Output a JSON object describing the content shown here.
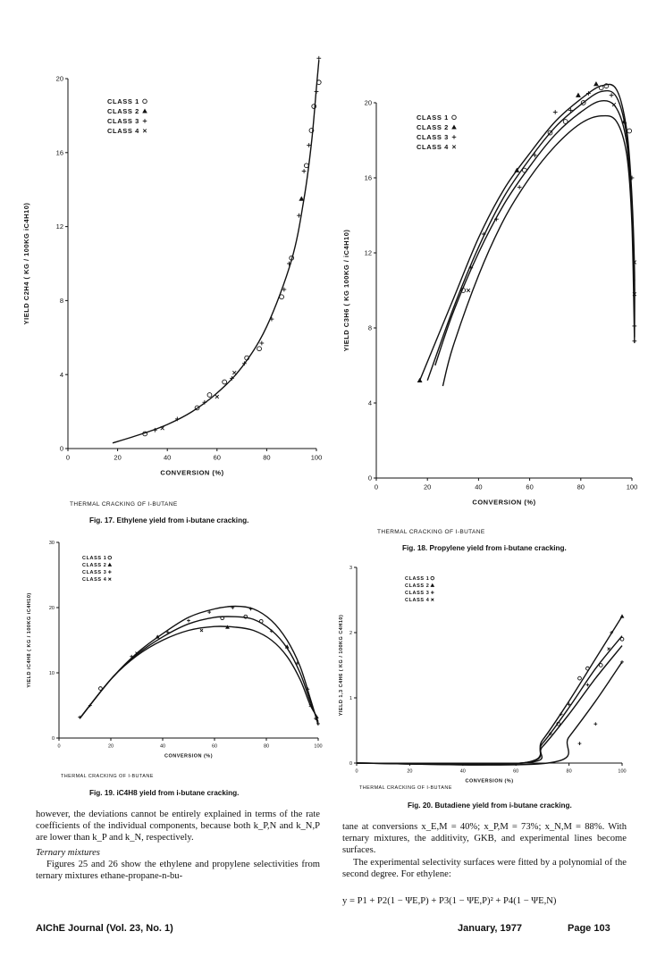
{
  "figures": [
    {
      "id": "fig17",
      "caption": "Fig. 17. Ethylene yield from i-butane cracking.",
      "note": "THERMAL CRACKING OF I-BUTANE",
      "chart_data": {
        "type": "scatter",
        "xlabel": "CONVERSION (%)",
        "ylabel": "YIELD C2H4 ( KG / 100KG iC4H10)",
        "xlim": [
          0,
          100
        ],
        "ylim": [
          0,
          20
        ],
        "xticks": [
          0,
          20,
          40,
          60,
          80,
          100
        ],
        "yticks": [
          0,
          4,
          8,
          12,
          16,
          20
        ],
        "legend": [
          "CLASS 1",
          "CLASS 2",
          "CLASS 3",
          "CLASS 4"
        ],
        "legend_markers": [
          "o",
          "△",
          "+",
          "×"
        ],
        "legend_position": "top-left",
        "curves": [
          {
            "x": [
              18,
              30,
              40,
              50,
              60,
              70,
              80,
              90,
              95,
              98,
              100,
              101
            ],
            "y": [
              0.3,
              0.8,
              1.3,
              2.0,
              3.0,
              4.4,
              6.6,
              10.2,
              13.5,
              16.5,
              19.5,
              21.0
            ]
          }
        ],
        "points": [
          {
            "class": 1,
            "x": 31,
            "y": 0.8
          },
          {
            "class": 3,
            "x": 35,
            "y": 1.0
          },
          {
            "class": 4,
            "x": 38,
            "y": 1.1
          },
          {
            "class": 3,
            "x": 44,
            "y": 1.6
          },
          {
            "class": 1,
            "x": 52,
            "y": 2.2
          },
          {
            "class": 3,
            "x": 55,
            "y": 2.5
          },
          {
            "class": 1,
            "x": 57,
            "y": 2.9
          },
          {
            "class": 4,
            "x": 60,
            "y": 2.8
          },
          {
            "class": 1,
            "x": 63,
            "y": 3.6
          },
          {
            "class": 3,
            "x": 66,
            "y": 3.8
          },
          {
            "class": 4,
            "x": 67,
            "y": 4.1
          },
          {
            "class": 3,
            "x": 71,
            "y": 4.6
          },
          {
            "class": 1,
            "x": 72,
            "y": 4.9
          },
          {
            "class": 1,
            "x": 77,
            "y": 5.4
          },
          {
            "class": 3,
            "x": 78,
            "y": 5.7
          },
          {
            "class": 3,
            "x": 82,
            "y": 7.0
          },
          {
            "class": 1,
            "x": 86,
            "y": 8.2
          },
          {
            "class": 3,
            "x": 87,
            "y": 8.6
          },
          {
            "class": 3,
            "x": 89,
            "y": 10.0
          },
          {
            "class": 1,
            "x": 90,
            "y": 10.3
          },
          {
            "class": 3,
            "x": 93,
            "y": 12.6
          },
          {
            "class": 2,
            "x": 94,
            "y": 13.5
          },
          {
            "class": 3,
            "x": 95,
            "y": 15.0
          },
          {
            "class": 1,
            "x": 96,
            "y": 15.3
          },
          {
            "class": 3,
            "x": 97,
            "y": 16.4
          },
          {
            "class": 1,
            "x": 98,
            "y": 17.2
          },
          {
            "class": 1,
            "x": 99,
            "y": 18.5
          },
          {
            "class": 3,
            "x": 100,
            "y": 19.3
          },
          {
            "class": 1,
            "x": 101,
            "y": 19.8
          },
          {
            "class": 3,
            "x": 101,
            "y": 21.1
          }
        ]
      }
    },
    {
      "id": "fig18",
      "caption": "Fig. 18. Propylene yield from i-butane cracking.",
      "note": "THERMAL CRACKING OF I-BUTANE",
      "chart_data": {
        "type": "scatter",
        "xlabel": "CONVERSION (%)",
        "ylabel": "YIELD C3H6 ( KG 100KG / iC4H10)",
        "xlim": [
          0,
          100
        ],
        "ylim": [
          0,
          20
        ],
        "xticks": [
          0,
          20,
          40,
          60,
          80,
          100
        ],
        "yticks": [
          0,
          4,
          8,
          12,
          16,
          20
        ],
        "legend": [
          "CLASS 1",
          "CLASS 2",
          "CLASS 3",
          "CLASS 4"
        ],
        "legend_markers": [
          "o",
          "△",
          "+",
          "×"
        ],
        "legend_position": "top-left",
        "curves": [
          {
            "x": [
              17,
              30,
              40,
              50,
              60,
              70,
              80,
              88,
              94,
              98,
              100,
              101,
              101
            ],
            "y": [
              5.2,
              9.5,
              12.8,
              15.4,
              17.3,
              19.0,
              20.2,
              20.9,
              20.7,
              18.5,
              15.0,
              11.0,
              7.5
            ]
          },
          {
            "x": [
              20,
              30,
              40,
              50,
              60,
              70,
              80,
              88,
              94,
              98,
              100,
              101
            ],
            "y": [
              5.2,
              9.0,
              12.3,
              15.0,
              17.0,
              18.7,
              19.9,
              20.6,
              20.3,
              18.2,
              14.5,
              10.5
            ]
          },
          {
            "x": [
              23,
              30,
              40,
              50,
              60,
              70,
              80,
              88,
              94,
              98,
              100,
              101
            ],
            "y": [
              6.0,
              8.8,
              12.0,
              14.6,
              16.6,
              18.3,
              19.5,
              20.1,
              19.7,
              17.8,
              14.0,
              10.0
            ]
          },
          {
            "x": [
              26,
              30,
              40,
              50,
              60,
              70,
              80,
              88,
              94,
              98,
              100,
              101
            ],
            "y": [
              4.9,
              7.0,
              10.8,
              13.8,
              16.0,
              17.7,
              18.9,
              19.3,
              19.0,
              17.2,
              13.5,
              7.2
            ]
          }
        ],
        "points": [
          {
            "class": 2,
            "x": 17,
            "y": 5.2
          },
          {
            "class": 1,
            "x": 34,
            "y": 10.0
          },
          {
            "class": 4,
            "x": 36,
            "y": 10.0
          },
          {
            "class": 3,
            "x": 37,
            "y": 11.2
          },
          {
            "class": 3,
            "x": 42,
            "y": 13.0
          },
          {
            "class": 3,
            "x": 47,
            "y": 13.8
          },
          {
            "class": 2,
            "x": 55,
            "y": 16.4
          },
          {
            "class": 3,
            "x": 56,
            "y": 15.5
          },
          {
            "class": 1,
            "x": 58,
            "y": 16.4
          },
          {
            "class": 3,
            "x": 62,
            "y": 17.2
          },
          {
            "class": 1,
            "x": 68,
            "y": 18.4
          },
          {
            "class": 3,
            "x": 70,
            "y": 19.5
          },
          {
            "class": 1,
            "x": 74,
            "y": 19.0
          },
          {
            "class": 3,
            "x": 76,
            "y": 19.6
          },
          {
            "class": 2,
            "x": 79,
            "y": 20.4
          },
          {
            "class": 1,
            "x": 81,
            "y": 20.0
          },
          {
            "class": 3,
            "x": 83,
            "y": 20.5
          },
          {
            "class": 2,
            "x": 86,
            "y": 21.0
          },
          {
            "class": 1,
            "x": 88,
            "y": 20.8
          },
          {
            "class": 1,
            "x": 90,
            "y": 20.9
          },
          {
            "class": 3,
            "x": 92,
            "y": 20.4
          },
          {
            "class": 4,
            "x": 93,
            "y": 19.9
          },
          {
            "class": 2,
            "x": 97,
            "y": 19.0
          },
          {
            "class": 1,
            "x": 99,
            "y": 18.5
          },
          {
            "class": 3,
            "x": 100,
            "y": 16.0
          },
          {
            "class": 4,
            "x": 101,
            "y": 11.5
          },
          {
            "class": 4,
            "x": 101,
            "y": 9.8
          },
          {
            "class": 3,
            "x": 101,
            "y": 8.1
          },
          {
            "class": 3,
            "x": 101,
            "y": 7.3
          }
        ]
      }
    },
    {
      "id": "fig19",
      "caption": "Fig. 19. iC4H8 yield from i-butane cracking.",
      "note": "THERMAL CRACKING OF I-BUTANE",
      "chart_data": {
        "type": "scatter",
        "xlabel": "CONVERSION (%)",
        "ylabel": "YIELD iC4H8 ( KG / 100KG iC4H10)",
        "xlim": [
          0,
          100
        ],
        "ylim": [
          0,
          30
        ],
        "xticks": [
          0,
          20,
          40,
          60,
          80,
          100
        ],
        "yticks": [
          0,
          10,
          20,
          30
        ],
        "legend": [
          "CLASS 1",
          "CLASS 2",
          "CLASS 3",
          "CLASS 4"
        ],
        "legend_markers": [
          "o",
          "△",
          "+",
          "×"
        ],
        "legend_position": "top-left",
        "curves": [
          {
            "x": [
              8,
              20,
              30,
              40,
              50,
              60,
              68,
              75,
              82,
              88,
              93,
              97,
              100
            ],
            "y": [
              3.0,
              9.0,
              13.0,
              16.0,
              18.5,
              19.8,
              20.2,
              19.8,
              18.0,
              15.0,
              11.0,
              6.0,
              2.0
            ]
          },
          {
            "x": [
              8,
              20,
              30,
              40,
              50,
              60,
              68,
              75,
              82,
              88,
              93,
              97,
              100
            ],
            "y": [
              3.0,
              9.0,
              12.8,
              15.5,
              17.5,
              18.5,
              18.6,
              18.2,
              16.5,
              13.8,
              10.0,
              5.5,
              2.5
            ]
          },
          {
            "x": [
              8,
              20,
              30,
              40,
              50,
              60,
              68,
              75,
              82,
              88,
              93,
              97,
              100
            ],
            "y": [
              3.0,
              9.0,
              12.6,
              15.0,
              16.5,
              17.1,
              17.0,
              16.5,
              15.0,
              12.5,
              9.0,
              5.0,
              3.0
            ]
          }
        ],
        "points": [
          {
            "class": 3,
            "x": 8,
            "y": 3.2
          },
          {
            "class": 3,
            "x": 12,
            "y": 5.0
          },
          {
            "class": 1,
            "x": 16,
            "y": 7.6
          },
          {
            "class": 3,
            "x": 28,
            "y": 12.5
          },
          {
            "class": 4,
            "x": 30,
            "y": 13.0
          },
          {
            "class": 2,
            "x": 38,
            "y": 15.5
          },
          {
            "class": 3,
            "x": 42,
            "y": 16.2
          },
          {
            "class": 3,
            "x": 50,
            "y": 18.0
          },
          {
            "class": 4,
            "x": 55,
            "y": 16.5
          },
          {
            "class": 3,
            "x": 58,
            "y": 19.3
          },
          {
            "class": 1,
            "x": 63,
            "y": 18.4
          },
          {
            "class": 2,
            "x": 65,
            "y": 17.0
          },
          {
            "class": 3,
            "x": 67,
            "y": 20.0
          },
          {
            "class": 1,
            "x": 72,
            "y": 18.6
          },
          {
            "class": 3,
            "x": 74,
            "y": 19.8
          },
          {
            "class": 1,
            "x": 78,
            "y": 17.9
          },
          {
            "class": 3,
            "x": 82,
            "y": 16.4
          },
          {
            "class": 2,
            "x": 88,
            "y": 14.0
          },
          {
            "class": 3,
            "x": 92,
            "y": 11.5
          },
          {
            "class": 3,
            "x": 96,
            "y": 7.5
          },
          {
            "class": 4,
            "x": 97,
            "y": 5.0
          },
          {
            "class": 3,
            "x": 99,
            "y": 3.0
          },
          {
            "class": 3,
            "x": 100,
            "y": 2.2
          }
        ]
      }
    },
    {
      "id": "fig20",
      "caption": "Fig. 20. Butadiene yield from i-butane cracking.",
      "note": "THERMAL CRACKING OF I-BUTANE",
      "chart_data": {
        "type": "scatter",
        "xlabel": "CONVERSION (%)",
        "ylabel": "YIELD 1,3 C4H6 ( KG / 100KG C4H10)",
        "xlim": [
          0,
          100
        ],
        "ylim": [
          0,
          3
        ],
        "xticks": [
          0,
          20,
          40,
          60,
          80,
          100
        ],
        "yticks": [
          0,
          1,
          2,
          3
        ],
        "legend": [
          "CLASS 1",
          "CLASS 2",
          "CLASS 3",
          "CLASS 4"
        ],
        "legend_markers": [
          "o",
          "△",
          "+",
          "×"
        ],
        "legend_position": "top-left",
        "curves": [
          {
            "x": [
              0,
              62,
              70,
              80,
              90,
              100
            ],
            "y": [
              0,
              0,
              0.35,
              0.95,
              1.6,
              2.25
            ]
          },
          {
            "x": [
              0,
              62,
              70,
              80,
              90,
              100
            ],
            "y": [
              0,
              0,
              0.3,
              0.85,
              1.45,
              1.95
            ]
          },
          {
            "x": [
              0,
              63,
              70,
              80,
              90,
              100
            ],
            "y": [
              0,
              0,
              0.25,
              0.75,
              1.3,
              1.8
            ]
          },
          {
            "x": [
              0,
              72,
              80,
              90,
              100
            ],
            "y": [
              0,
              0,
              0.4,
              0.95,
              1.55
            ]
          }
        ],
        "points": [
          {
            "class": 3,
            "x": 73,
            "y": 0.45
          },
          {
            "class": 1,
            "x": 76,
            "y": 0.6
          },
          {
            "class": 3,
            "x": 77,
            "y": 0.75
          },
          {
            "class": 3,
            "x": 80,
            "y": 0.9
          },
          {
            "class": 1,
            "x": 84,
            "y": 1.3
          },
          {
            "class": 3,
            "x": 84,
            "y": 0.3
          },
          {
            "class": 1,
            "x": 87,
            "y": 1.45
          },
          {
            "class": 3,
            "x": 87,
            "y": 1.2
          },
          {
            "class": 3,
            "x": 90,
            "y": 0.6
          },
          {
            "class": 1,
            "x": 92,
            "y": 1.5
          },
          {
            "class": 4,
            "x": 95,
            "y": 1.75
          },
          {
            "class": 3,
            "x": 96,
            "y": 2.0
          },
          {
            "class": 2,
            "x": 100,
            "y": 2.25
          },
          {
            "class": 1,
            "x": 100,
            "y": 1.9
          },
          {
            "class": 3,
            "x": 100,
            "y": 1.55
          }
        ]
      }
    }
  ],
  "text": {
    "left_col_p1": "however, the deviations cannot be entirely explained in terms of the rate coefficients of the individual components, because both k_P,N and k_N,P are lower than k_P and k_N, respectively.",
    "left_col_heading": "Ternary mixtures",
    "left_col_p2": "Figures 25 and 26 show the ethylene and propylene selectivities from ternary mixtures ethane-propane-n-bu-",
    "right_col_p1": "tane at conversions x_E,M = 40%; x_P,M = 73%; x_N,M = 88%. With ternary mixtures, the additivity, GKB, and experimental lines become surfaces.",
    "right_col_p2": "The experimental selectivity surfaces were fitted by a polynomial of the second degree. For ethylene:",
    "equation": "y = P1 + P2(1 − ΨE,P) + P3(1 − ΨE,P)² + P4(1 − ΨE,N)"
  },
  "footer": {
    "journal": "AIChE Journal (Vol. 23, No. 1)",
    "date": "January, 1977",
    "page": "Page 103"
  }
}
